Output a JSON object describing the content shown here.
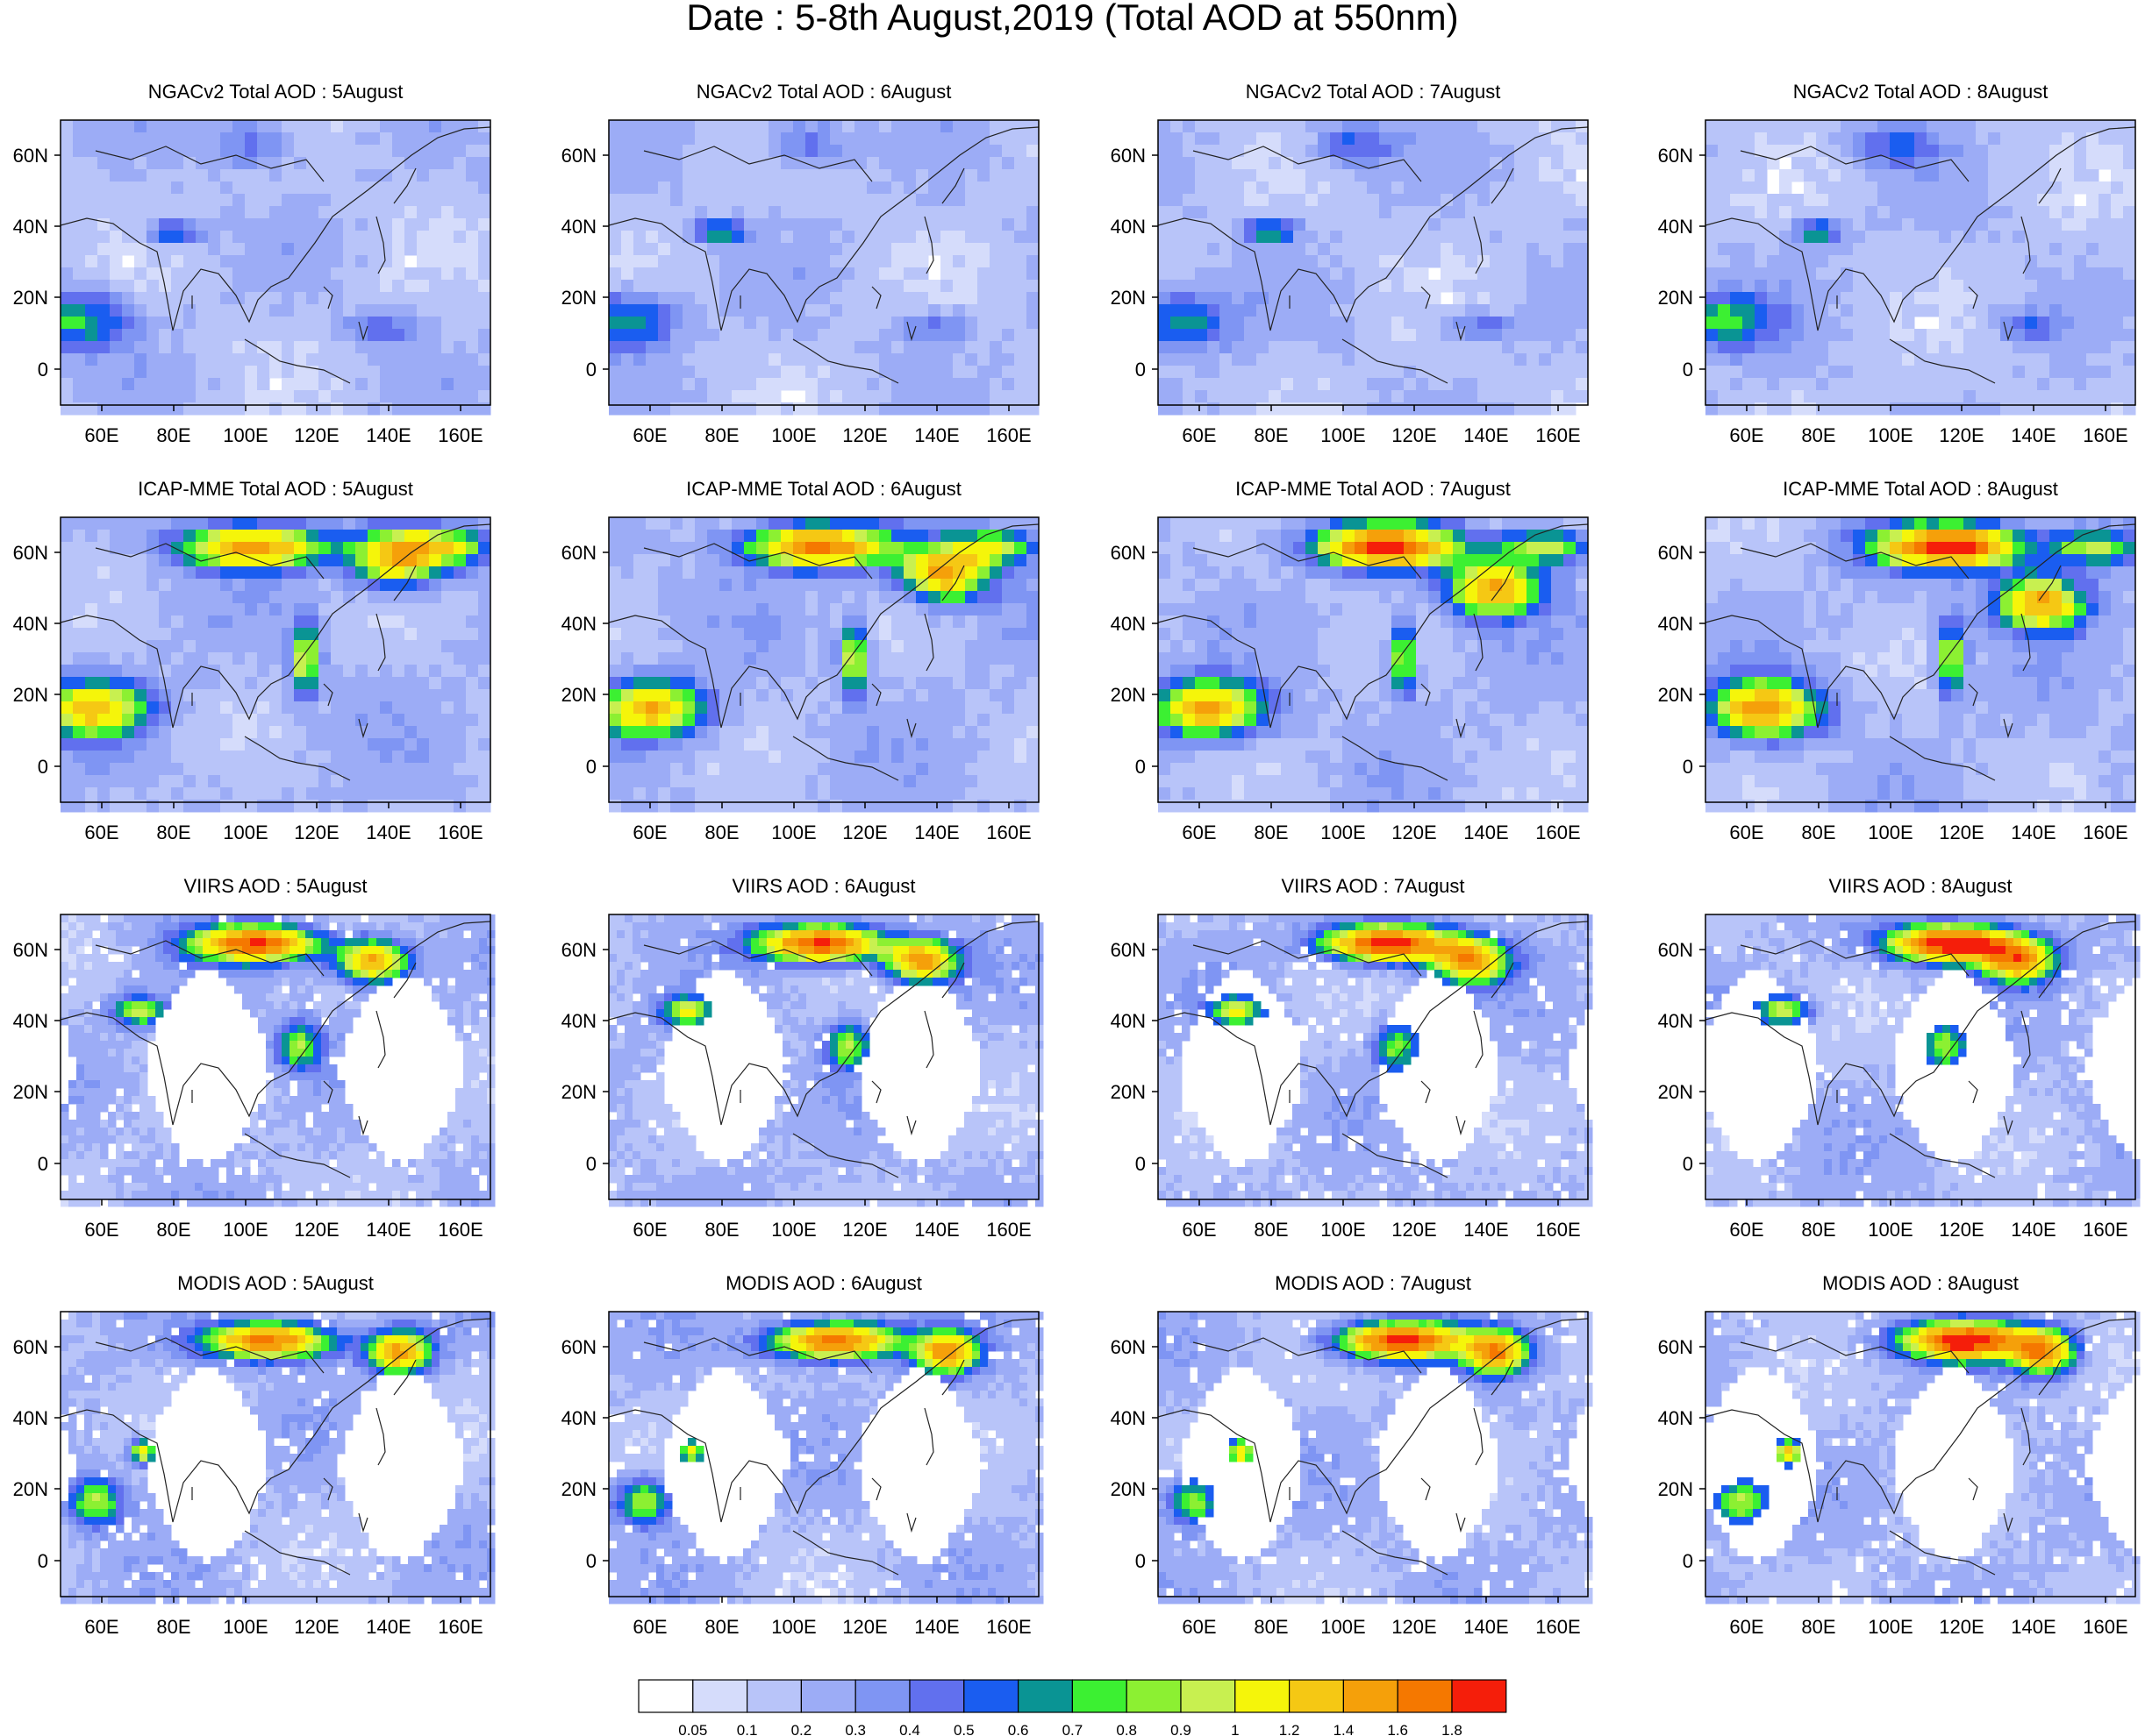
{
  "title": "Date : 5-8th August,2019 (Total AOD at 550nm)",
  "panels": [
    {
      "title": "NGACv2 Total AOD : 5August"
    },
    {
      "title": "NGACv2 Total AOD : 6August"
    },
    {
      "title": "NGACv2 Total AOD : 7August"
    },
    {
      "title": "NGACv2 Total AOD : 8August"
    },
    {
      "title": "ICAP-MME Total AOD : 5August"
    },
    {
      "title": "ICAP-MME Total AOD : 6August"
    },
    {
      "title": "ICAP-MME Total AOD : 7August"
    },
    {
      "title": "ICAP-MME Total AOD : 8August"
    },
    {
      "title": "VIIRS AOD : 5August"
    },
    {
      "title": "VIIRS AOD : 6August"
    },
    {
      "title": "VIIRS AOD : 7August"
    },
    {
      "title": "VIIRS AOD : 8August"
    },
    {
      "title": "MODIS AOD : 5August"
    },
    {
      "title": "MODIS AOD : 6August"
    },
    {
      "title": "MODIS AOD : 7August"
    },
    {
      "title": "MODIS AOD : 8August"
    }
  ],
  "axes": {
    "x_ticks": [
      "60E",
      "80E",
      "100E",
      "120E",
      "140E",
      "160E"
    ],
    "y_ticks": [
      "60N",
      "40N",
      "20N",
      "0"
    ]
  },
  "colorbar": {
    "labels": [
      "0.05",
      "0.1",
      "0.2",
      "0.3",
      "0.4",
      "0.5",
      "0.6",
      "0.7",
      "0.8",
      "0.9",
      "1",
      "1.2",
      "1.4",
      "1.6",
      "1.8"
    ],
    "colors": [
      "#ffffff",
      "#d5dcfb",
      "#b8c4f9",
      "#9cacf6",
      "#7f95f3",
      "#6170ee",
      "#1a5df0",
      "#0a9494",
      "#3cf032",
      "#8cf032",
      "#c8f050",
      "#f5f50a",
      "#f5c814",
      "#f5a00a",
      "#f57800",
      "#f51e0a"
    ]
  }
}
